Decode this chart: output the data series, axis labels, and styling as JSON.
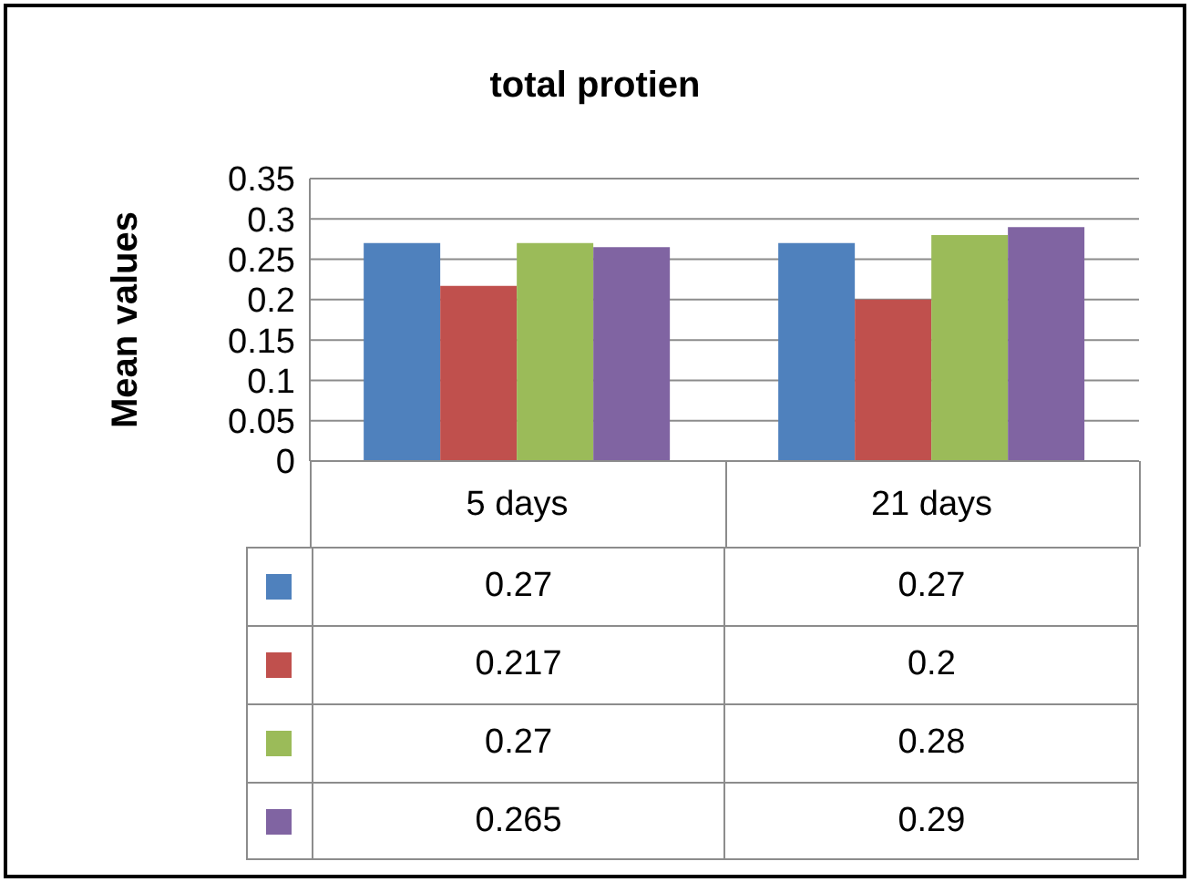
{
  "chart_data": {
    "type": "bar",
    "title": "total protien",
    "ylabel": "Mean values",
    "categories": [
      "5 days",
      "21 days"
    ],
    "series": [
      {
        "color": "#4f81bd",
        "values": [
          0.27,
          0.27
        ]
      },
      {
        "color": "#c0504d",
        "values": [
          0.217,
          0.2
        ]
      },
      {
        "color": "#9bbb59",
        "values": [
          0.27,
          0.28
        ]
      },
      {
        "color": "#8064a2",
        "values": [
          0.265,
          0.29
        ]
      }
    ],
    "ylim": [
      0,
      0.35
    ],
    "yticks": [
      0,
      0.05,
      0.1,
      0.15,
      0.2,
      0.25,
      0.3,
      0.35
    ],
    "grid": "y",
    "data_labels": true
  }
}
